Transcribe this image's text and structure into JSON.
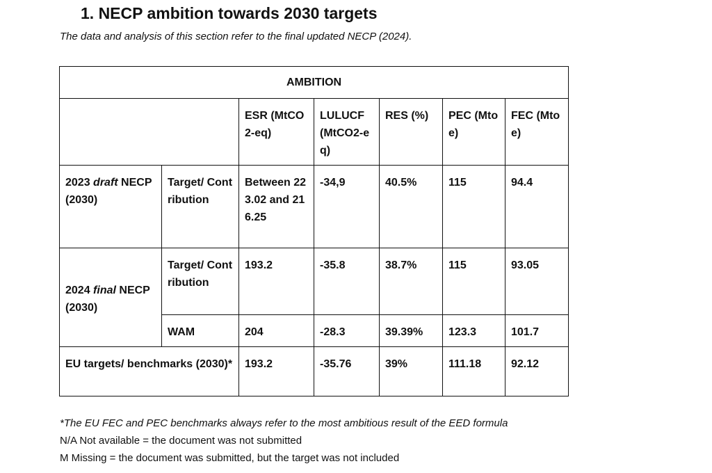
{
  "heading": "1.  NECP ambition towards 2030 targets",
  "subtitle": "The data and analysis of this section refer to the final updated NECP (2024).",
  "table": {
    "title": "AMBITION",
    "columns": [
      "ESR (MtCO2-eq)",
      "LULUCF (MtCO2-eq)",
      "RES (%)",
      "PEC (Mtoe)",
      "FEC (Mtoe)"
    ],
    "rows": {
      "draft2023": {
        "label_pre": "2023 ",
        "label_em": "draft",
        "label_post": " NECP (2030)",
        "sublabel": "Target/ Contribution",
        "values": [
          "Between 223.02 and 216.25",
          "-34,9",
          "40.5%",
          "115",
          "94.4"
        ]
      },
      "final2024": {
        "label_pre": "2024 ",
        "label_em": "final",
        "label_post": " NECP (2030)",
        "target": {
          "sublabel": "Target/ Contribution",
          "values": [
            "193.2",
            "-35.8",
            "38.7%",
            "115",
            "93.05"
          ]
        },
        "wam": {
          "sublabel": "WAM",
          "values": [
            "204",
            "-28.3",
            "39.39%",
            "123.3",
            "101.7"
          ]
        }
      },
      "eu": {
        "label": "EU targets/ benchmarks (2030)*",
        "values": [
          "193.2",
          "-35.76",
          "39%",
          "111.18",
          "92.12"
        ]
      }
    }
  },
  "notes": [
    "*The EU FEC and PEC benchmarks always refer to the most ambitious result of the EED formula",
    "N/A Not available = the document was not submitted",
    "M Missing = the document was submitted, but the target was not included"
  ]
}
